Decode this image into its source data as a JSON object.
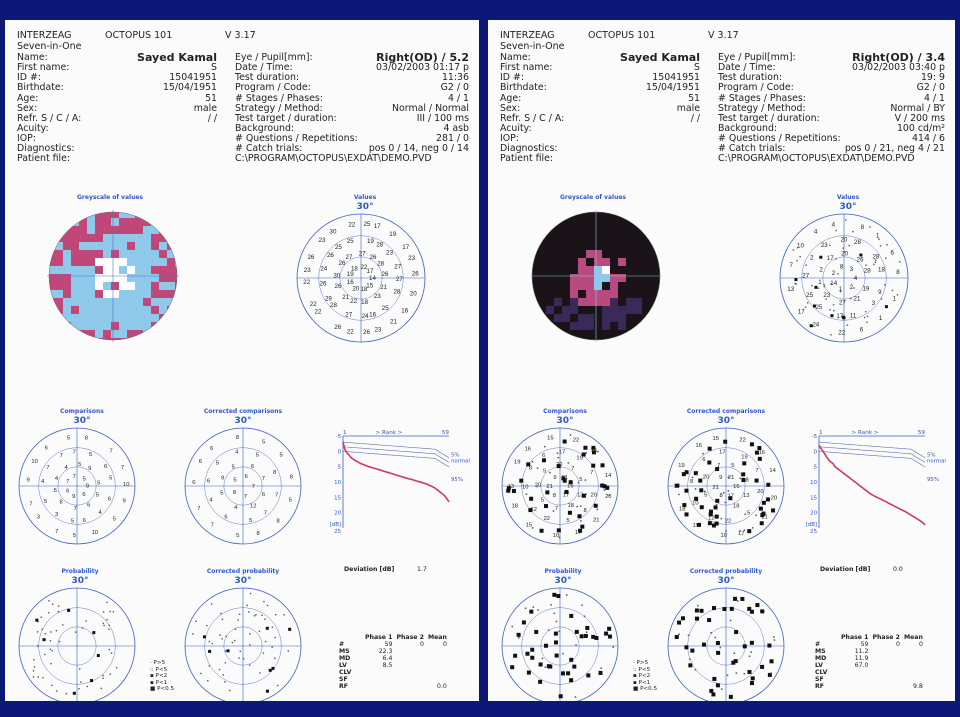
{
  "pages": [
    {
      "header": {
        "vendor": "INTERZEAG",
        "sub": "Seven-in-One",
        "product": "OCTOPUS 101",
        "version": "V 3.17"
      },
      "patient": [
        {
          "label": "Name:",
          "value": "Sayed Kamal",
          "bold": true
        },
        {
          "label": "First name:",
          "value": "S"
        },
        {
          "label": "ID #:",
          "value": "15041951"
        },
        {
          "label": "Birthdate:",
          "value": "15/04/1951"
        },
        {
          "label": "Age:",
          "value": "51"
        },
        {
          "label": "Sex:",
          "value": "male"
        },
        {
          "label": "Refr. S / C / A:",
          "value": "/ /"
        },
        {
          "label": "Acuity:",
          "value": ""
        },
        {
          "label": "IOP:",
          "value": ""
        },
        {
          "label": "Diagnostics:",
          "value": ""
        },
        {
          "label": "Patient file:",
          "value": ""
        }
      ],
      "exam": [
        {
          "label": "Eye / Pupil[mm]:",
          "value": "Right(OD) /  5.2",
          "bold": true
        },
        {
          "label": "Date / Time:",
          "value": "03/02/2003  01:17 p"
        },
        {
          "label": "Test duration:",
          "value": "11:36"
        },
        {
          "label": "Program / Code:",
          "value": "G2 / 0"
        },
        {
          "label": "# Stages / Phases:",
          "value": "4 / 1"
        },
        {
          "label": "Strategy / Method:",
          "value": "Normal / Normal"
        },
        {
          "label": "Test target / duration:",
          "value": "III / 100 ms"
        },
        {
          "label": "Background:",
          "value": "4 asb"
        },
        {
          "label": "# Questions / Repetitions:",
          "value": "281 / 0"
        },
        {
          "label": "# Catch trials:",
          "value": "pos 0 / 14, neg 0 / 14"
        },
        {
          "label": "",
          "value": "C:\\PROGRAM\\OCTOPUS\\EXDAT\\DEMO.PVD",
          "path": true
        }
      ],
      "titles": {
        "greyscale": "Greyscale of values",
        "values": "Values",
        "comparisons": "Comparisons",
        "corrected_comparisons": "Corrected comparisons",
        "probability": "Probability",
        "corrected_probability": "Corrected probability",
        "degree": "30°"
      },
      "greyscale": {
        "colors": [
          "#ffffff",
          "#8ec8ea",
          "#c04878"
        ],
        "dark": false
      },
      "values": [
        "14",
        "15",
        "18",
        "20",
        "16",
        "19",
        "18",
        "22",
        "17",
        "21",
        "23",
        "18",
        "22",
        "21",
        "26",
        "30",
        "26",
        "27",
        "27",
        "26",
        "28",
        "26",
        "25",
        "16",
        "24",
        "27",
        "28",
        "29",
        "26",
        "24",
        "26",
        "25",
        "25",
        "19",
        "28",
        "23",
        "27",
        "27",
        "28",
        "23",
        "26",
        "22",
        "26",
        "22",
        "22",
        "22",
        "23",
        "26",
        "23",
        "30",
        "22",
        "25",
        "17",
        "19",
        "17",
        "23",
        "26",
        "20",
        "16",
        "21"
      ],
      "comparisons": [
        "9",
        "6",
        "9",
        "6",
        "7",
        "7",
        "5",
        "5",
        "6",
        "7",
        "8",
        "5",
        "4",
        "4",
        "5",
        "9",
        "5",
        "4",
        "6",
        "5",
        "3",
        "5",
        "4",
        "7",
        "7",
        "7",
        "5",
        "6",
        "5",
        "6",
        "10",
        "5",
        "7",
        "3",
        "7",
        "9",
        "10",
        "6",
        "5",
        "8",
        "7",
        "7",
        "10",
        "9",
        "5"
      ],
      "corr_comparisons": [
        "7",
        "7",
        "8",
        "5",
        "6",
        "6",
        "12",
        "4",
        "5",
        "9",
        "5",
        "6",
        "7",
        "7",
        "5",
        "6",
        "4",
        "6",
        "5",
        "4",
        "5",
        "8",
        "7",
        "8",
        "5",
        "7",
        "7",
        "6",
        "6",
        "6",
        "8",
        "5",
        "5",
        "8",
        "5",
        "8"
      ],
      "rank": {
        "top_label": "> Rank >",
        "left": "1",
        "right": "59",
        "y_ticks": [
          "-5",
          "0",
          "5",
          "10",
          "15",
          "20",
          "[dB]",
          "25"
        ],
        "p5": "5%",
        "normal": "normal",
        "p95": "95%",
        "curve": [
          -3,
          -0.5,
          0.5,
          1.2,
          2,
          2.5,
          3,
          3.3,
          3.7,
          4,
          4.3,
          4.5,
          4.8,
          5,
          5.2,
          5.4,
          5.6,
          5.8,
          6,
          6.2,
          6.4,
          6.6,
          6.8,
          7,
          7.2,
          7.4,
          7.6,
          7.8,
          8,
          8.2,
          8.4,
          8.6,
          8.8,
          9,
          9.1,
          9.3,
          9.5,
          9.7,
          9.9,
          10.1,
          10.3,
          10.5,
          10.7,
          11,
          11.3,
          11.6,
          12,
          12.5,
          13,
          13.5,
          14,
          14.6,
          15.5,
          16.5
        ]
      },
      "deviation": {
        "label": "Deviation [dB]",
        "value": "1.7"
      },
      "phases": {
        "headers": [
          "Phase 1",
          "Phase 2",
          "Mean"
        ],
        "rows": [
          [
            "#",
            "59",
            "0",
            "0"
          ],
          [
            "MS",
            "22.3",
            "",
            ""
          ],
          [
            "MD",
            "6.4",
            "",
            ""
          ],
          [
            "LV",
            "8.5",
            "",
            ""
          ],
          [
            "CLV",
            "",
            "",
            ""
          ],
          [
            "SF",
            "",
            "",
            ""
          ],
          [
            "RF",
            "",
            "",
            "0.0"
          ]
        ]
      },
      "legend": [
        "· P>5",
        ":: P<5",
        "▪ P<2",
        "▪ P<1",
        "■ P<0.5"
      ]
    },
    {
      "header": {
        "vendor": "INTERZEAG",
        "sub": "Seven-in-One",
        "product": "OCTOPUS 101",
        "version": "V 3.17"
      },
      "patient": [
        {
          "label": "Name:",
          "value": "Sayed Kamal",
          "bold": true
        },
        {
          "label": "First name:",
          "value": "S"
        },
        {
          "label": "ID #:",
          "value": "15041951"
        },
        {
          "label": "Birthdate:",
          "value": "15/04/1951"
        },
        {
          "label": "Age:",
          "value": "51"
        },
        {
          "label": "Sex:",
          "value": "male"
        },
        {
          "label": "Refr. S / C / A:",
          "value": "/ /"
        },
        {
          "label": "Acuity:",
          "value": ""
        },
        {
          "label": "IOP:",
          "value": ""
        },
        {
          "label": "Diagnostics:",
          "value": ""
        },
        {
          "label": "Patient file:",
          "value": ""
        }
      ],
      "exam": [
        {
          "label": "Eye / Pupil[mm]:",
          "value": "Right(OD) /  3.4",
          "bold": true
        },
        {
          "label": "Date / Time:",
          "value": "03/02/2003  03:40 p"
        },
        {
          "label": "Test duration:",
          "value": "19: 9"
        },
        {
          "label": "Program / Code:",
          "value": "G2 / 0"
        },
        {
          "label": "# Stages / Phases:",
          "value": "4 / 1"
        },
        {
          "label": "Strategy / Method:",
          "value": "Normal / BY"
        },
        {
          "label": "Test target / duration:",
          "value": "V / 200 ms"
        },
        {
          "label": "Background:",
          "value": "100 cd/m²"
        },
        {
          "label": "# Questions / Repetitions:",
          "value": "414 / 6"
        },
        {
          "label": "# Catch trials:",
          "value": "pos 0 / 21, neg 4 / 21"
        },
        {
          "label": "",
          "value": "C:\\PROGRAM\\OCTOPUS\\EXDAT\\DEMO.PVD",
          "path": true
        }
      ],
      "titles": {
        "greyscale": "Greyscale of values",
        "values": "Values",
        "comparisons": "Comparisons",
        "corrected_comparisons": "Corrected comparisons",
        "probability": "Probability",
        "corrected_probability": "Corrected probability",
        "degree": "30°"
      },
      "greyscale": {
        "colors": [
          "#1a1418",
          "#b84a80",
          "#8ec8ea",
          "#ffffff",
          "#3a2a5a"
        ],
        "dark": true
      },
      "values": [
        "4",
        "2",
        "1",
        "14",
        "2",
        "8",
        "3",
        "19",
        "21",
        "27",
        "23",
        "1",
        "2",
        "17",
        "20",
        "26",
        "28",
        "3",
        "11",
        "17",
        "25",
        "25",
        "27",
        "2",
        "23",
        "20",
        "28",
        "28",
        "18",
        "9",
        "6",
        "22",
        "24",
        "17",
        "13",
        "7",
        "10",
        "4",
        "4",
        "8",
        "1",
        "6",
        "8",
        "1",
        "1"
      ],
      "comparisons": [
        "16",
        "17",
        "8",
        "21",
        "9",
        "21",
        "13",
        "18",
        "7",
        "5",
        "20",
        "5",
        "20",
        "7",
        "5",
        "8",
        "5",
        "22",
        "12",
        "10",
        "8",
        "6",
        "17",
        "19",
        "7",
        "20",
        "17",
        "10",
        "15",
        "18",
        "13",
        "19",
        "16",
        "15",
        "22",
        "16",
        "14",
        "20",
        "21"
      ],
      "corr_comparisons": [
        "16",
        "17",
        "8",
        "21",
        "9",
        "21",
        "13",
        "18",
        "7",
        "5",
        "20",
        "7",
        "5",
        "8",
        "5",
        "22",
        "12",
        "10",
        "8",
        "6",
        "17",
        "19",
        "7",
        "20",
        "17",
        "10",
        "15",
        "18",
        "13",
        "19",
        "16",
        "15",
        "22",
        "16",
        "14",
        "20",
        "21"
      ],
      "rank": {
        "top_label": "> Rank >",
        "left": "1",
        "right": "59",
        "y_ticks": [
          "-5",
          "0",
          "5",
          "10",
          "15",
          "20",
          "[dB]",
          "25"
        ],
        "p5": "5%",
        "normal": "normal",
        "p95": "95%",
        "curve": [
          -2,
          -1,
          0,
          1,
          2,
          3,
          3.5,
          4,
          5,
          5.5,
          6,
          6.5,
          7,
          7.5,
          8,
          8.5,
          9,
          9.5,
          10,
          10.5,
          11,
          11.5,
          12,
          12.5,
          13,
          13.5,
          14,
          14.3,
          14.7,
          15,
          15.3,
          15.6,
          16,
          16.3,
          16.6,
          17,
          17.3,
          17.6,
          18,
          18.3,
          18.6,
          19,
          19.3,
          19.6,
          20,
          20.4,
          20.8,
          21.2,
          21.6,
          22,
          22.4,
          22.8,
          23.3,
          24
        ]
      },
      "deviation": {
        "label": "Deviation [dB]",
        "value": "0.0"
      },
      "phases": {
        "headers": [
          "Phase 1",
          "Phase 2",
          "Mean"
        ],
        "rows": [
          [
            "#",
            "59",
            "0",
            "0"
          ],
          [
            "MS",
            "11.2",
            "",
            ""
          ],
          [
            "MD",
            "11.9",
            "",
            ""
          ],
          [
            "LV",
            "67.0",
            "",
            ""
          ],
          [
            "CLV",
            "",
            "",
            ""
          ],
          [
            "SF",
            "",
            "",
            ""
          ],
          [
            "RF",
            "",
            "",
            "9.8"
          ]
        ]
      },
      "legend": [
        "· P>5",
        ":: P<5",
        "▪ P<2",
        "▪ P<1",
        "■ P<0.5"
      ]
    }
  ]
}
